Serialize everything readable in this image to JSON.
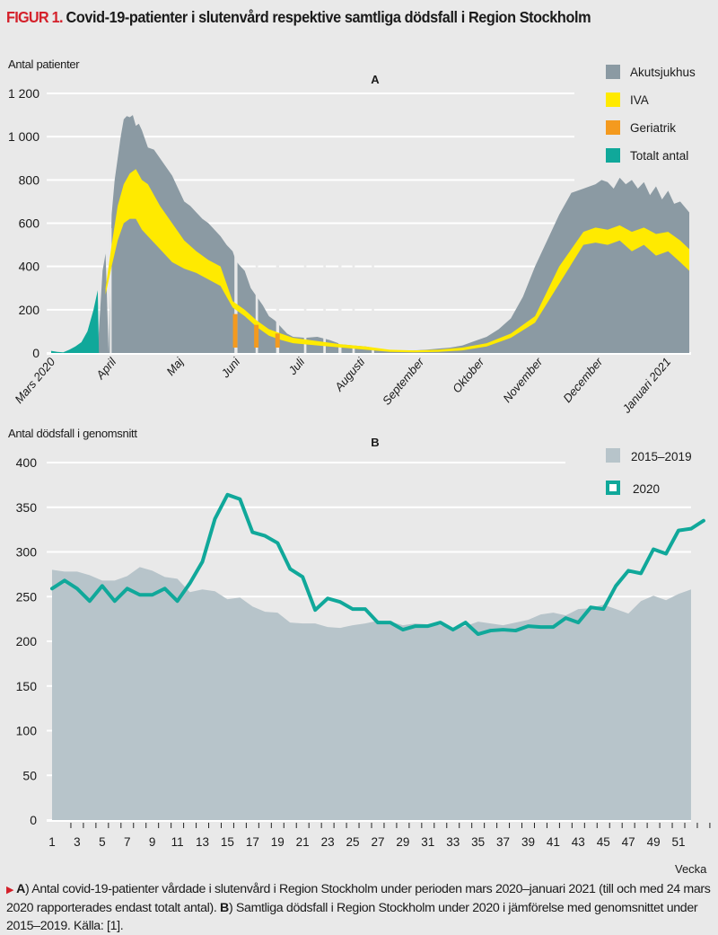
{
  "figure": {
    "label": "FIGUR 1.",
    "title": "Covid-19-patienter i slutenvård respektive samtliga dödsfall i Region Stockholm",
    "caption_a_label": "A",
    "caption_a_text": ") Antal covid-19-patienter vårdade i slutenvård i Region Stockholm under perioden mars 2020–januari 2021 (till och med 24 mars 2020 rapporterades endast totalt antal). ",
    "caption_b_label": "B",
    "caption_b_text": ") Samtliga dödsfall i Region Stockholm under 2020 i jämförelse med genomsnittet under 2015–2019. Källa: [1]."
  },
  "chart_data": [
    {
      "type": "area",
      "panel": "A",
      "title": "A",
      "ylabel": "Antal patienter",
      "xlabel": "",
      "ylim": [
        0,
        1200
      ],
      "yticks": [
        0,
        200,
        400,
        600,
        800,
        1000,
        1200
      ],
      "grid": true,
      "legend_position": "top-right",
      "x_tick_labels": [
        "Mars 2020",
        "April",
        "Maj",
        "Juni",
        "Juli",
        "Augusti",
        "September",
        "Oktober",
        "November",
        "December",
        "Januari 2021"
      ],
      "x_unit": "months since 1 March 2020",
      "colors": {
        "Akutsjukhus": "#8b9aa3",
        "IVA": "#ffea00",
        "Geriatrik": "#f49a1e",
        "Totalt antal": "#10a89a"
      },
      "legend": [
        "Akutsjukhus",
        "IVA",
        "Geriatrik",
        "Totalt antal"
      ],
      "series": [
        {
          "name": "Totalt antal",
          "x": [
            0.0,
            0.1,
            0.2,
            0.3,
            0.4,
            0.5,
            0.6,
            0.7,
            0.77,
            0.79
          ],
          "values": [
            10,
            5,
            3,
            15,
            30,
            50,
            100,
            200,
            290,
            0
          ]
        },
        {
          "name": "Akutsjukhus (top of stack)",
          "x": [
            0.78,
            0.85,
            0.9,
            0.95,
            1.0,
            1.05,
            1.1,
            1.15,
            1.2,
            1.25,
            1.3,
            1.35,
            1.4,
            1.45,
            1.5,
            1.55,
            1.6,
            1.7,
            1.8,
            1.9,
            2.0,
            2.1,
            2.2,
            2.3,
            2.4,
            2.5,
            2.6,
            2.7,
            2.8,
            2.9,
            3.0,
            3.05,
            3.1,
            3.2,
            3.3,
            3.4,
            3.5,
            3.6,
            3.7,
            3.8,
            3.9,
            4.0,
            4.2,
            4.4,
            4.6,
            4.8,
            5.0,
            5.2,
            5.4,
            5.6,
            5.8,
            6.0,
            6.2,
            6.4,
            6.6,
            6.8,
            7.0,
            7.2,
            7.4,
            7.6,
            7.8,
            8.0,
            8.2,
            8.4,
            8.6,
            8.8,
            9.0,
            9.1,
            9.2,
            9.3,
            9.4,
            9.5,
            9.6,
            9.7,
            9.8,
            9.9,
            10.0,
            10.1,
            10.2,
            10.3,
            10.4,
            10.55
          ],
          "values": [
            60,
            380,
            460,
            0,
            640,
            800,
            900,
            1000,
            1080,
            1095,
            1090,
            1100,
            1050,
            1060,
            1030,
            990,
            950,
            940,
            900,
            860,
            820,
            760,
            700,
            680,
            650,
            620,
            600,
            570,
            540,
            500,
            470,
            430,
            410,
            380,
            300,
            260,
            220,
            170,
            150,
            120,
            90,
            75,
            70,
            75,
            60,
            40,
            35,
            30,
            20,
            12,
            10,
            12,
            15,
            20,
            25,
            35,
            55,
            75,
            110,
            160,
            260,
            400,
            520,
            640,
            740,
            760,
            780,
            800,
            790,
            760,
            810,
            780,
            800,
            760,
            790,
            730,
            770,
            710,
            750,
            690,
            700,
            650
          ]
        },
        {
          "name": "IVA (band)",
          "x": [
            0.9,
            1.0,
            1.1,
            1.2,
            1.3,
            1.4,
            1.5,
            1.6,
            1.8,
            2.0,
            2.2,
            2.4,
            2.6,
            2.8,
            3.0,
            3.2,
            3.4,
            3.6,
            3.8,
            4.0,
            4.4,
            4.8,
            5.2,
            5.6,
            6.0,
            6.4,
            6.8,
            7.2,
            7.6,
            8.0,
            8.4,
            8.8,
            9.0,
            9.2,
            9.4,
            9.6,
            9.8,
            10.0,
            10.2,
            10.4,
            10.55
          ],
          "values_upper": [
            300,
            500,
            680,
            780,
            830,
            850,
            800,
            780,
            680,
            600,
            520,
            470,
            430,
            400,
            240,
            200,
            150,
            110,
            90,
            70,
            55,
            40,
            30,
            15,
            12,
            15,
            25,
            45,
            90,
            170,
            400,
            560,
            580,
            570,
            590,
            560,
            580,
            550,
            560,
            520,
            480
          ],
          "values_lower": [
            270,
            400,
            520,
            600,
            620,
            620,
            570,
            540,
            480,
            420,
            390,
            370,
            340,
            310,
            210,
            170,
            120,
            80,
            60,
            45,
            35,
            25,
            15,
            5,
            3,
            5,
            12,
            30,
            70,
            140,
            320,
            500,
            510,
            500,
            520,
            470,
            500,
            450,
            470,
            420,
            380
          ]
        },
        {
          "name": "Geriatrik",
          "x": [
            3.05,
            3.4,
            3.75
          ],
          "values": [
            180,
            130,
            90
          ]
        }
      ]
    },
    {
      "type": "line",
      "panel": "B",
      "title": "B",
      "ylabel": "Antal dödsfall i genomsnitt",
      "xlabel": "Vecka",
      "ylim": [
        0,
        400
      ],
      "yticks": [
        0,
        50,
        100,
        150,
        200,
        250,
        300,
        350,
        400
      ],
      "x_tick_labels": [
        "1",
        "3",
        "5",
        "7",
        "9",
        "11",
        "13",
        "15",
        "17",
        "19",
        "21",
        "23",
        "25",
        "27",
        "29",
        "31",
        "33",
        "35",
        "37",
        "39",
        "41",
        "43",
        "45",
        "47",
        "49",
        "51"
      ],
      "xlim": [
        1,
        53
      ],
      "grid": true,
      "legend_position": "top-right",
      "colors": {
        "2015–2019": "#b7c4ca",
        "2020": "#10a89a"
      },
      "series": [
        {
          "name": "2015–2019",
          "style": "area",
          "x": [
            1,
            2,
            3,
            4,
            5,
            6,
            7,
            8,
            9,
            10,
            11,
            12,
            13,
            14,
            15,
            16,
            17,
            18,
            19,
            20,
            21,
            22,
            23,
            24,
            25,
            26,
            27,
            28,
            29,
            30,
            31,
            32,
            33,
            34,
            35,
            36,
            37,
            38,
            39,
            40,
            41,
            42,
            43,
            44,
            45,
            46,
            47,
            48,
            49,
            50,
            51,
            52
          ],
          "values": [
            280,
            278,
            278,
            274,
            268,
            268,
            273,
            283,
            279,
            272,
            270,
            255,
            258,
            256,
            247,
            249,
            239,
            233,
            232,
            221,
            220,
            220,
            216,
            215,
            218,
            220,
            223,
            222,
            218,
            220,
            219,
            218,
            214,
            217,
            222,
            220,
            218,
            221,
            224,
            230,
            232,
            229,
            236,
            237,
            241,
            236,
            231,
            245,
            251,
            246,
            253,
            258
          ]
        },
        {
          "name": "2020",
          "style": "line",
          "x": [
            1,
            2,
            3,
            4,
            5,
            6,
            7,
            8,
            9,
            10,
            11,
            12,
            13,
            14,
            15,
            16,
            17,
            18,
            19,
            20,
            21,
            22,
            23,
            24,
            25,
            26,
            27,
            28,
            29,
            30,
            31,
            32,
            33,
            34,
            35,
            36,
            37,
            38,
            39,
            40,
            41,
            42,
            43,
            44,
            45,
            46,
            47,
            48,
            49,
            50,
            51,
            52,
            53
          ],
          "values": [
            259,
            268,
            259,
            245,
            262,
            245,
            259,
            252,
            252,
            259,
            245,
            265,
            289,
            337,
            364,
            359,
            322,
            318,
            310,
            281,
            272,
            235,
            248,
            244,
            236,
            236,
            221,
            221,
            213,
            217,
            217,
            221,
            213,
            221,
            208,
            212,
            213,
            212,
            217,
            216,
            216,
            226,
            221,
            238,
            236,
            262,
            279,
            276,
            303,
            298,
            324,
            326,
            335
          ]
        }
      ]
    }
  ],
  "legend_a": [
    {
      "label": "Akutsjukhus",
      "color": "#8b9aa3"
    },
    {
      "label": "IVA",
      "color": "#ffea00"
    },
    {
      "label": "Geriatrik",
      "color": "#f49a1e"
    },
    {
      "label": "Totalt antal",
      "color": "#10a89a"
    }
  ],
  "legend_b": [
    {
      "label": "2015–2019",
      "color": "#b7c4ca"
    },
    {
      "label": "2020",
      "color": "#10a89a"
    }
  ]
}
